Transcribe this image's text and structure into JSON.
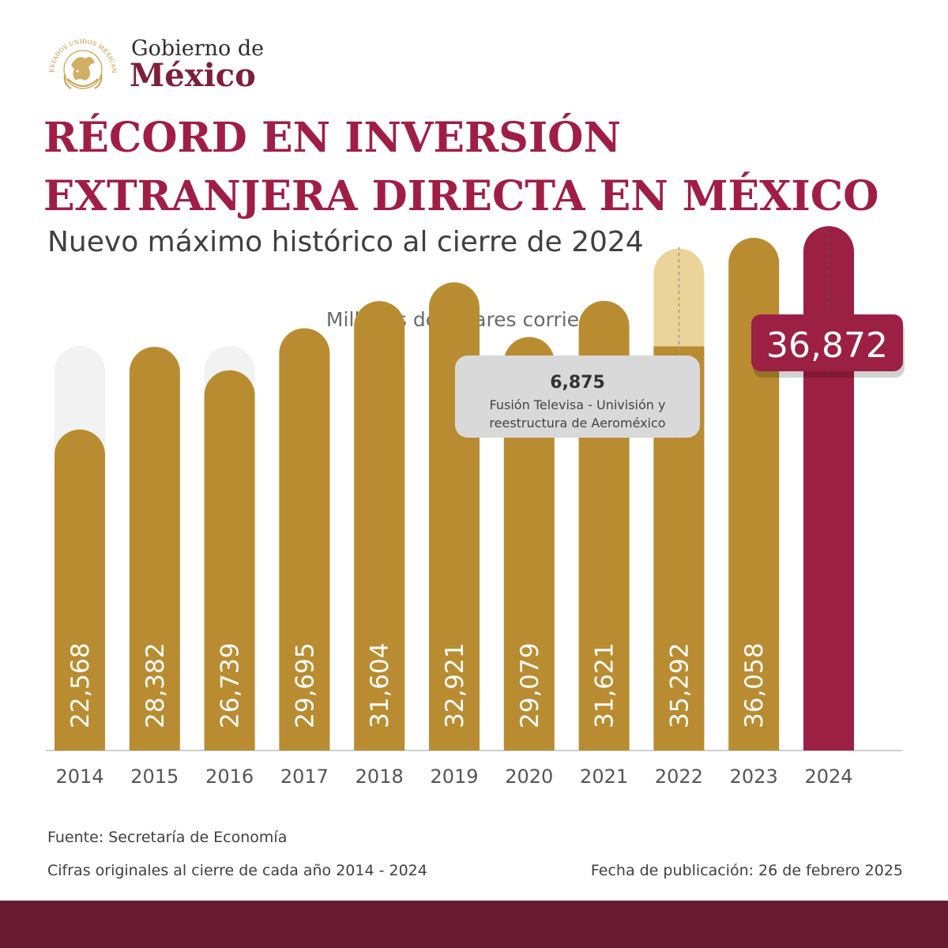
{
  "logo": {
    "seal_text": "ESTADOS UNIDOS MEXICANOS",
    "line1": "Gobierno de",
    "line2": "México"
  },
  "title": "RÉCORD EN INVERSIÓN EXTRANJERA DIRECTA EN MÉXICO",
  "subtitle": "Nuevo máximo histórico al cierre de 2024",
  "colors": {
    "title": "#a01e45",
    "bar": "#b98c32",
    "highlight_bar": "#9c1f44",
    "annotation_segment": "#ebd49a",
    "track": "#f2f2f2"
  },
  "chart_data": {
    "type": "bar",
    "ylabel": "Millones de dólares corrientes",
    "categories": [
      "2014",
      "2015",
      "2016",
      "2017",
      "2018",
      "2019",
      "2020",
      "2021",
      "2022",
      "2023",
      "2024"
    ],
    "values": [
      22568,
      28382,
      26739,
      29695,
      31604,
      32921,
      29079,
      31621,
      35292,
      36058,
      36872
    ],
    "value_labels": [
      "22,568",
      "28,382",
      "26,739",
      "29,695",
      "31,604",
      "32,921",
      "29,079",
      "31,621",
      "35,292",
      "36,058",
      "36,872"
    ],
    "highlight": {
      "category": "2024",
      "label": "36,872"
    },
    "annotation": {
      "category": "2022",
      "value": 6875,
      "label": "6,875",
      "text_lines": [
        "Fusión Televisa - Univisión y",
        "reestructura de Aeroméxico"
      ]
    },
    "grid": false,
    "legend": "none"
  },
  "footer": {
    "source": "Fuente: Secretaría de Economía",
    "note": "Cifras originales al cierre de cada año 2014 - 2024",
    "publication": "Fecha de publicación: 26 de febrero 2025"
  }
}
